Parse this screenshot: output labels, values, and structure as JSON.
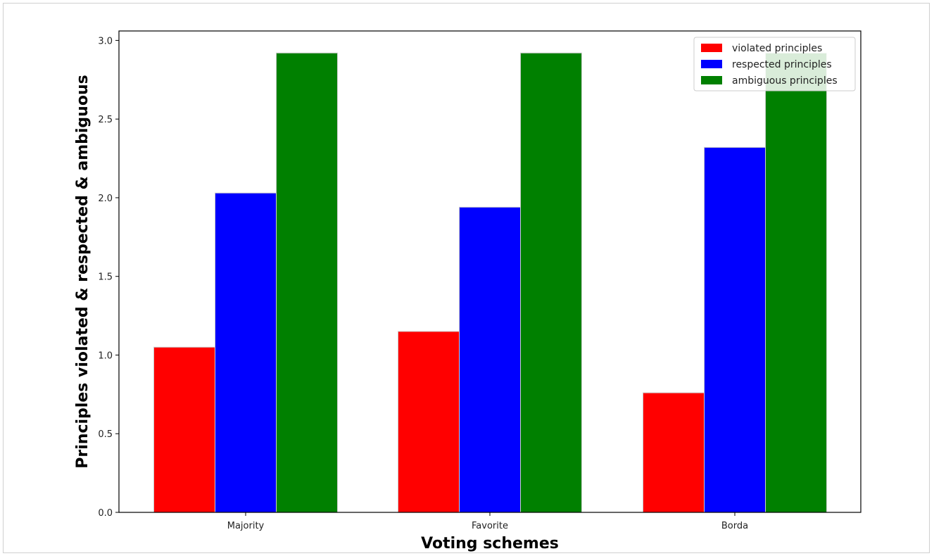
{
  "chart_data": {
    "type": "bar",
    "title": "",
    "xlabel": "Voting schemes",
    "ylabel": "Principles violated & respected & ambiguous",
    "categories": [
      "Majority",
      "Favorite",
      "Borda"
    ],
    "series": [
      {
        "name": "violated principles",
        "values": [
          1.05,
          1.15,
          0.76
        ],
        "color": "#ff0000"
      },
      {
        "name": "respected principles",
        "values": [
          2.03,
          1.94,
          2.32
        ],
        "color": "#0000ff"
      },
      {
        "name": "ambiguous principles",
        "values": [
          2.92,
          2.92,
          2.92
        ],
        "color": "#008000"
      }
    ],
    "ylim": [
      0,
      3.06
    ],
    "yticks": [
      "0.0",
      "0.5",
      "1.0",
      "1.5",
      "2.0",
      "2.5",
      "3.0"
    ],
    "grid": false,
    "legend": "top-right"
  }
}
